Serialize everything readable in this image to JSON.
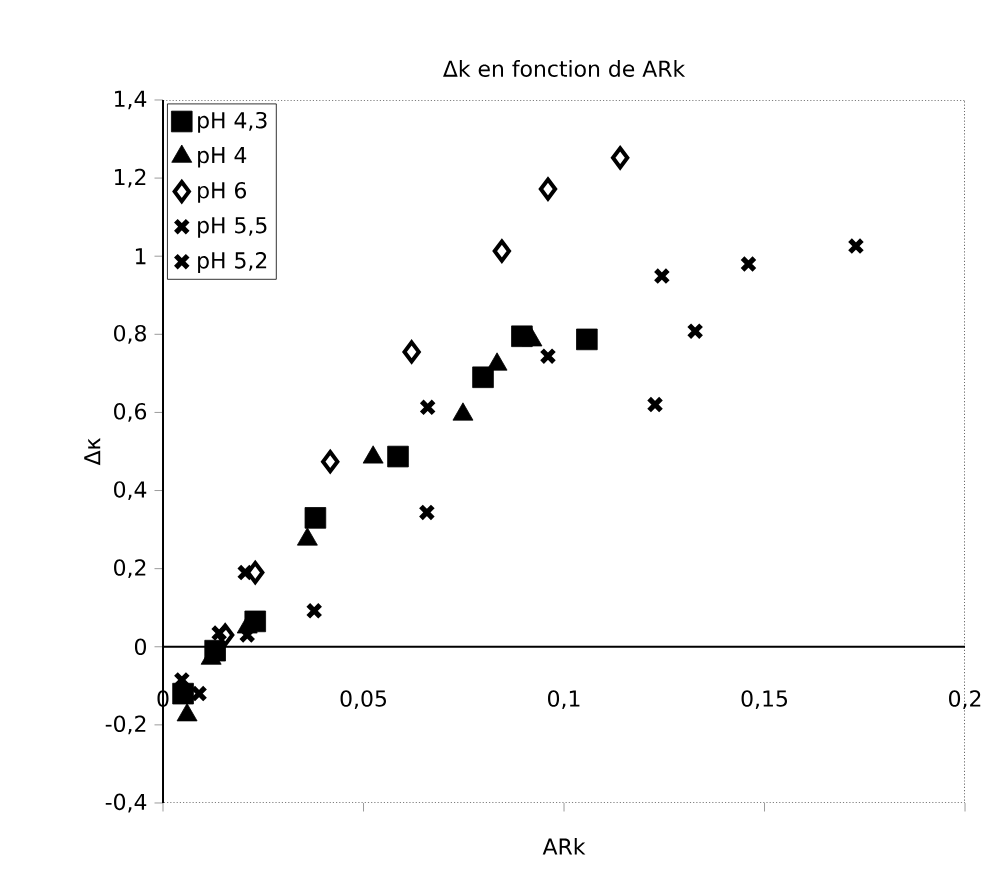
{
  "chart_data": {
    "type": "scatter",
    "title": "Δk en fonction de ARk",
    "xlabel": "ARk",
    "ylabel": "Δκ",
    "xlim": [
      0,
      0.2
    ],
    "ylim": [
      -0.4,
      1.4
    ],
    "xticks": [
      0,
      {
        "value": 0.05,
        "label": "0,05"
      },
      {
        "value": 0.1,
        "label": "0,1"
      },
      {
        "value": 0.15,
        "label": "0,15"
      },
      {
        "value": 0.2,
        "label": "0,2"
      }
    ],
    "yticks": [
      {
        "value": -0.4,
        "label": "-0,4"
      },
      {
        "value": -0.2,
        "label": "-0,2"
      },
      0,
      {
        "value": 0.2,
        "label": "0,2"
      },
      {
        "value": 0.4,
        "label": "0,4"
      },
      {
        "value": 0.6,
        "label": "0,6"
      },
      {
        "value": 0.8,
        "label": "0,8"
      },
      1,
      {
        "value": 1.2,
        "label": "1,2"
      },
      {
        "value": 1.4,
        "label": "1,4"
      }
    ],
    "grid": false,
    "legend": "top left",
    "series": [
      {
        "name": "pH 4,3",
        "color": "#000000",
        "marker": "square",
        "x": [
          0.005,
          0.013,
          0.023,
          0.038,
          0.0586,
          0.0798,
          0.0895,
          0.1057
        ],
        "values": [
          -0.12,
          -0.01,
          0.065,
          0.33,
          0.487,
          0.69,
          0.795,
          0.787
        ]
      },
      {
        "name": "pH 4",
        "color": "#000000",
        "marker": "triangle",
        "x": [
          0.006,
          0.012,
          0.021,
          0.036,
          0.0524,
          0.0748,
          0.0833,
          0.092
        ],
        "values": [
          -0.175,
          -0.03,
          0.05,
          0.275,
          0.485,
          0.595,
          0.723,
          0.785
        ]
      },
      {
        "name": "pH 6",
        "color": "#000000",
        "marker": "diamond",
        "x": [
          0.0155,
          0.023,
          0.0417,
          0.062,
          0.0845,
          0.096,
          0.114
        ],
        "values": [
          0.03,
          0.19,
          0.474,
          0.755,
          1.013,
          1.172,
          1.252
        ]
      },
      {
        "name": "pH 5,5",
        "color": "#000000",
        "marker": "cross",
        "x": [
          0.0047,
          0.014,
          0.0205,
          0.066,
          0.096,
          0.1227,
          0.1244
        ],
        "values": [
          -0.085,
          0.035,
          0.19,
          0.613,
          0.744,
          0.62,
          0.949
        ]
      },
      {
        "name": "pH 5,2",
        "color": "#000000",
        "marker": "cross",
        "x": [
          0.009,
          0.021,
          0.0377,
          0.0658,
          0.1327,
          0.146,
          0.1728
        ],
        "values": [
          -0.12,
          0.03,
          0.092,
          0.344,
          0.808,
          0.98,
          1.026
        ]
      }
    ]
  }
}
